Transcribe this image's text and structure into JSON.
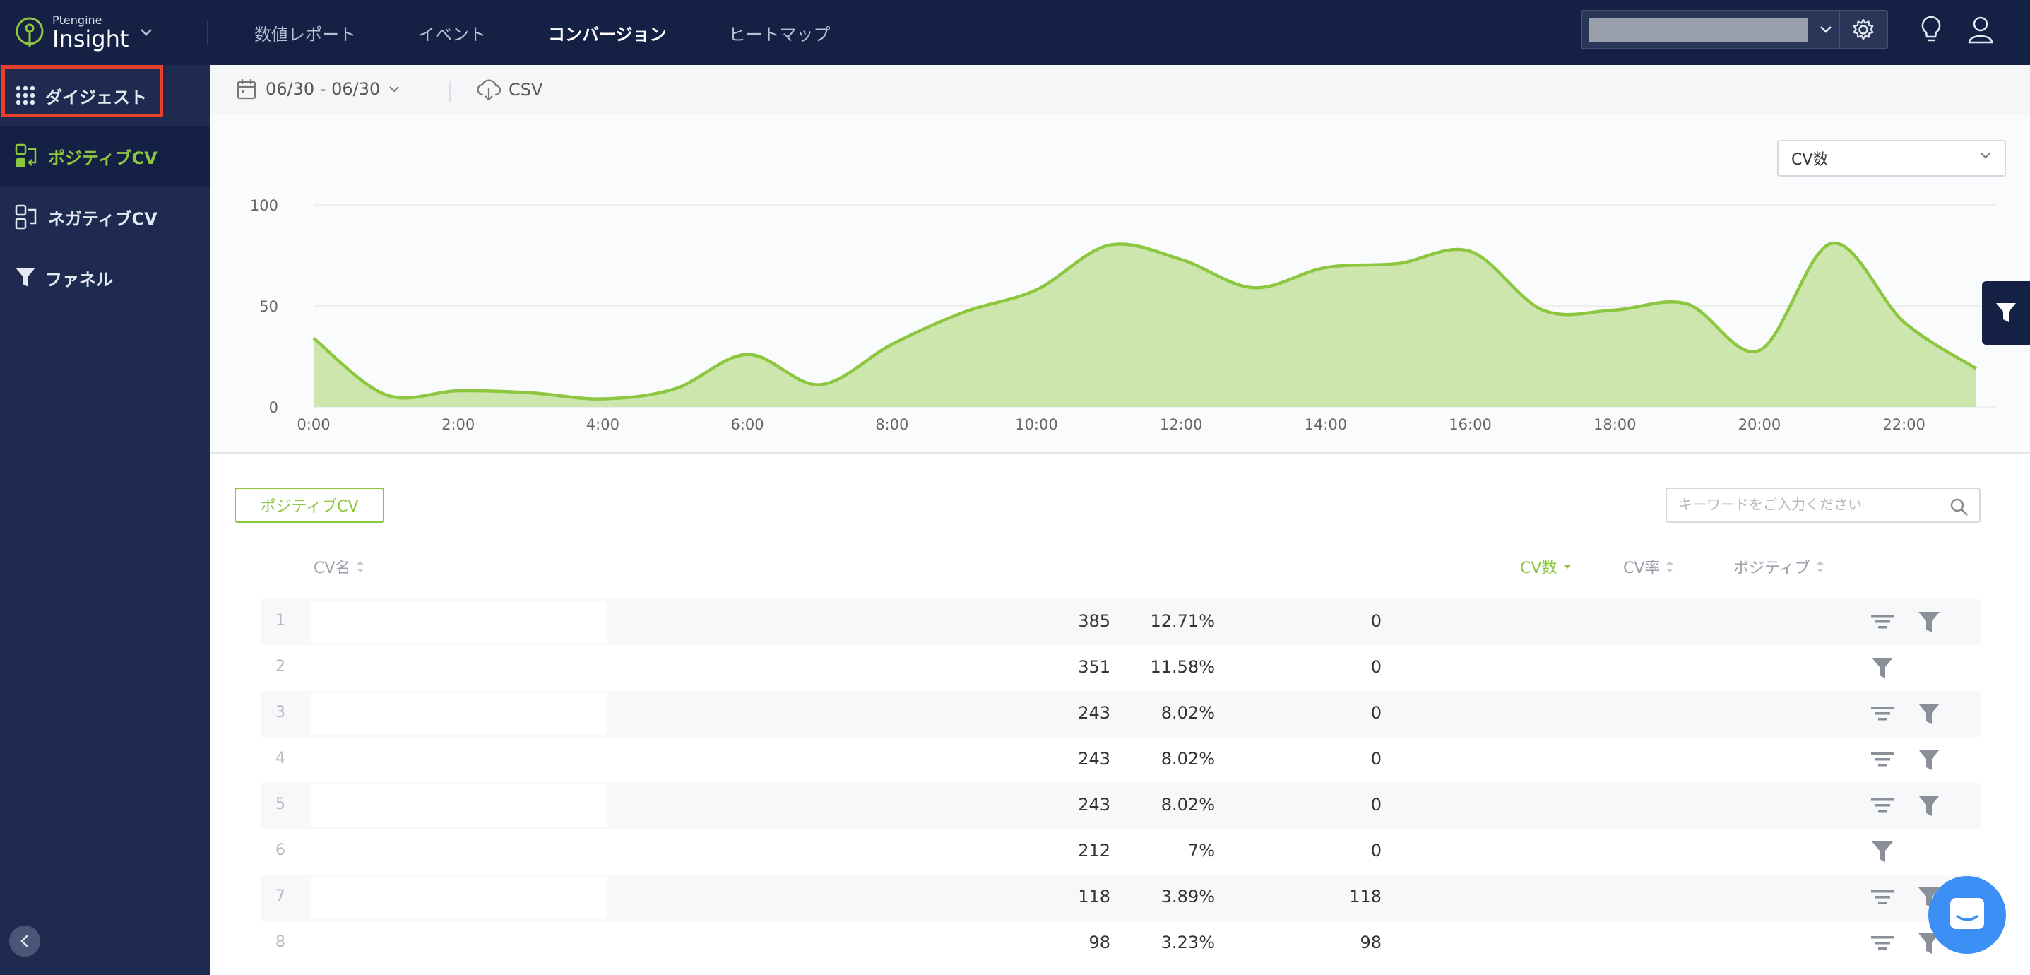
{
  "app": {
    "vendor": "Ptengine",
    "name": "Insight"
  },
  "nav": {
    "items": [
      "数値レポート",
      "イベント",
      "コンバージョン",
      "ヒートマップ"
    ],
    "active": "コンバージョン"
  },
  "sidebar": {
    "items": [
      {
        "label": "ダイジェスト",
        "icon": "grid-icon"
      },
      {
        "label": "ポジティブCV",
        "icon": "positive-cv-icon",
        "active": true
      },
      {
        "label": "ネガティブCV",
        "icon": "negative-cv-icon"
      },
      {
        "label": "ファネル",
        "icon": "funnel-icon"
      }
    ]
  },
  "toolbar": {
    "date_range": "06/30 - 06/30",
    "csv_label": "CSV"
  },
  "metric_select": {
    "selected": "CV数"
  },
  "chart_data": {
    "type": "area",
    "x": [
      "0:00",
      "1:00",
      "2:00",
      "3:00",
      "4:00",
      "5:00",
      "6:00",
      "7:00",
      "8:00",
      "9:00",
      "10:00",
      "11:00",
      "12:00",
      "13:00",
      "14:00",
      "15:00",
      "16:00",
      "17:00",
      "18:00",
      "19:00",
      "20:00",
      "21:00",
      "22:00",
      "23:00"
    ],
    "x_tick_labels": [
      "0:00",
      "2:00",
      "4:00",
      "6:00",
      "8:00",
      "10:00",
      "12:00",
      "14:00",
      "16:00",
      "18:00",
      "20:00",
      "22:00"
    ],
    "series": [
      {
        "values": [
          34,
          6,
          8,
          7,
          4,
          9,
          26,
          11,
          31,
          47,
          58,
          80,
          73,
          59,
          69,
          71,
          77,
          48,
          48,
          51,
          28,
          81,
          42,
          19
        ]
      }
    ],
    "y_ticks": [
      0,
      50,
      100
    ],
    "ylim": [
      0,
      100
    ],
    "grid": true,
    "color": "#8dc63f",
    "fill": "#cde6ad"
  },
  "table": {
    "tag_label": "ポジティブCV",
    "search_placeholder": "キーワードをご入力ください",
    "headers": {
      "name": "CV名",
      "cv_count": "CV数",
      "cv_rate": "CV率",
      "positive": "ポジティブ"
    },
    "rows": [
      {
        "idx": "1",
        "cv": "385",
        "rate": "12.71%",
        "pos": "0",
        "has_list": true
      },
      {
        "idx": "2",
        "cv": "351",
        "rate": "11.58%",
        "pos": "0",
        "has_list": false
      },
      {
        "idx": "3",
        "cv": "243",
        "rate": "8.02%",
        "pos": "0",
        "has_list": true
      },
      {
        "idx": "4",
        "cv": "243",
        "rate": "8.02%",
        "pos": "0",
        "has_list": true
      },
      {
        "idx": "5",
        "cv": "243",
        "rate": "8.02%",
        "pos": "0",
        "has_list": true
      },
      {
        "idx": "6",
        "cv": "212",
        "rate": "7%",
        "pos": "0",
        "has_list": false
      },
      {
        "idx": "7",
        "cv": "118",
        "rate": "3.89%",
        "pos": "118",
        "has_list": true
      },
      {
        "idx": "8",
        "cv": "98",
        "rate": "3.23%",
        "pos": "98",
        "has_list": true
      }
    ]
  }
}
